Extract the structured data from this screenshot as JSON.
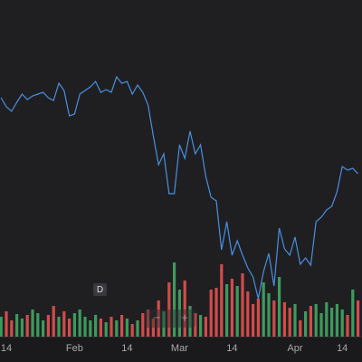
{
  "chart_data": {
    "type": "line",
    "categories": [
      null,
      "14",
      null,
      null,
      null,
      null,
      null,
      null,
      null,
      null,
      null,
      null,
      null,
      null,
      "Feb",
      null,
      null,
      null,
      null,
      null,
      null,
      null,
      null,
      null,
      "14",
      null,
      null,
      null,
      null,
      null,
      null,
      null,
      null,
      null,
      "Mar",
      null,
      null,
      null,
      null,
      null,
      null,
      null,
      null,
      null,
      "14",
      null,
      null,
      null,
      null,
      null,
      null,
      null,
      null,
      null,
      null,
      null,
      "Apr",
      null,
      null,
      null,
      null,
      null,
      null,
      null,
      null,
      "14",
      null,
      null,
      null
    ],
    "ylim": [
      0,
      400
    ],
    "series": [
      {
        "color": "#4a8fe0",
        "values": [
          292,
          282,
          277,
          287,
          296,
          290,
          294,
          296,
          298,
          292,
          289,
          308,
          300,
          272,
          274,
          296,
          300,
          304,
          310,
          298,
          301,
          298,
          315,
          308,
          310,
          296,
          306,
          298,
          284,
          250,
          218,
          230,
          186,
          186,
          240,
          225,
          255,
          230,
          240,
          205,
          182,
          178,
          124,
          155,
          118,
          134,
          118,
          104,
          94,
          70,
          100,
          120,
          84,
          148,
          125,
          118,
          138,
          108,
          115,
          107,
          155,
          160,
          168,
          172,
          188,
          216,
          212,
          214,
          208
        ]
      },
      {
        "type": "bar",
        "axis": "y2",
        "up_color": "#3d9a5c",
        "down_color": "#d34b4b",
        "values": [
          22,
          28,
          18,
          25,
          20,
          24,
          30,
          26,
          18,
          24,
          34,
          22,
          28,
          20,
          26,
          30,
          22,
          18,
          24,
          20,
          16,
          22,
          18,
          24,
          20,
          14,
          18,
          26,
          30,
          20,
          40,
          28,
          60,
          82,
          52,
          62,
          34,
          26,
          24,
          22,
          52,
          54,
          80,
          58,
          64,
          56,
          70,
          50,
          36,
          42,
          60,
          48,
          40,
          66,
          38,
          32,
          36,
          18,
          28,
          34,
          36,
          26,
          38,
          32,
          36,
          30,
          24,
          52,
          40
        ]
      }
    ],
    "y2lim": [
      0,
      372
    ]
  },
  "controls": {
    "interval": "D",
    "zoom_out": "−",
    "zoom_in": "+"
  }
}
